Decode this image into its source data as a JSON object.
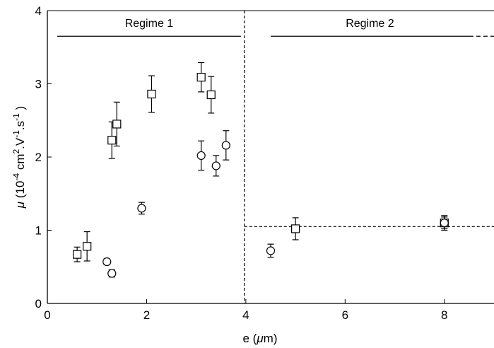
{
  "chart_data": {
    "type": "scatter",
    "title": "",
    "xlabel_parts": {
      "pre": "e (",
      "greek": "μ",
      "post": "m)"
    },
    "ylabel_parts": {
      "sym": "μ",
      "a": " (10",
      "e1": "-4",
      "b": " cm",
      "e2": "2",
      "c": ".V",
      "e3": "-1",
      "d": ".s",
      "e4": "-1",
      "f": " )"
    },
    "xlim": [
      0,
      9
    ],
    "ylim": [
      0,
      4
    ],
    "x_ticks": [
      0,
      2,
      4,
      6,
      8
    ],
    "x_tick_labels": [
      "0",
      "2",
      "4",
      "6",
      "8"
    ],
    "y_ticks": [
      0,
      1,
      2,
      3,
      4
    ],
    "y_tick_labels": [
      "0",
      "1",
      "2",
      "3",
      "4"
    ],
    "series": [
      {
        "marker": "square",
        "points": [
          {
            "x": 0.6,
            "y": 0.67,
            "err": 0.1
          },
          {
            "x": 0.8,
            "y": 0.78,
            "err": 0.2
          },
          {
            "x": 1.3,
            "y": 2.23,
            "err": 0.25
          },
          {
            "x": 1.4,
            "y": 2.45,
            "err": 0.3
          },
          {
            "x": 2.1,
            "y": 2.86,
            "err": 0.25
          },
          {
            "x": 3.1,
            "y": 3.09,
            "err": 0.2
          },
          {
            "x": 3.3,
            "y": 2.85,
            "err": 0.25
          },
          {
            "x": 5.0,
            "y": 1.02,
            "err": 0.15
          },
          {
            "x": 8.0,
            "y": 1.1,
            "err": 0.1
          }
        ]
      },
      {
        "marker": "circle",
        "points": [
          {
            "x": 1.2,
            "y": 0.57,
            "err": 0.04
          },
          {
            "x": 1.3,
            "y": 0.41,
            "err": 0.05
          },
          {
            "x": 1.9,
            "y": 1.3,
            "err": 0.08
          },
          {
            "x": 3.1,
            "y": 2.02,
            "err": 0.2
          },
          {
            "x": 3.4,
            "y": 1.88,
            "err": 0.14
          },
          {
            "x": 3.6,
            "y": 2.16,
            "err": 0.2
          },
          {
            "x": 4.5,
            "y": 0.72,
            "err": 0.09
          },
          {
            "x": 8.0,
            "y": 1.1,
            "err": 0.08
          }
        ]
      }
    ],
    "regimes": [
      {
        "label": "Regime 1",
        "x_start": 0.2,
        "x_end": 3.9
      },
      {
        "label": "Regime 2",
        "x_start": 4.5,
        "x_end": 8.5,
        "dashed_extension_to": 9.0
      }
    ],
    "regime_line_y": 3.65,
    "regime_divider_x": 3.97,
    "plateau_line": {
      "y": 1.05,
      "x_start": 3.97,
      "x_end": 9.0,
      "style": "dashed"
    }
  }
}
